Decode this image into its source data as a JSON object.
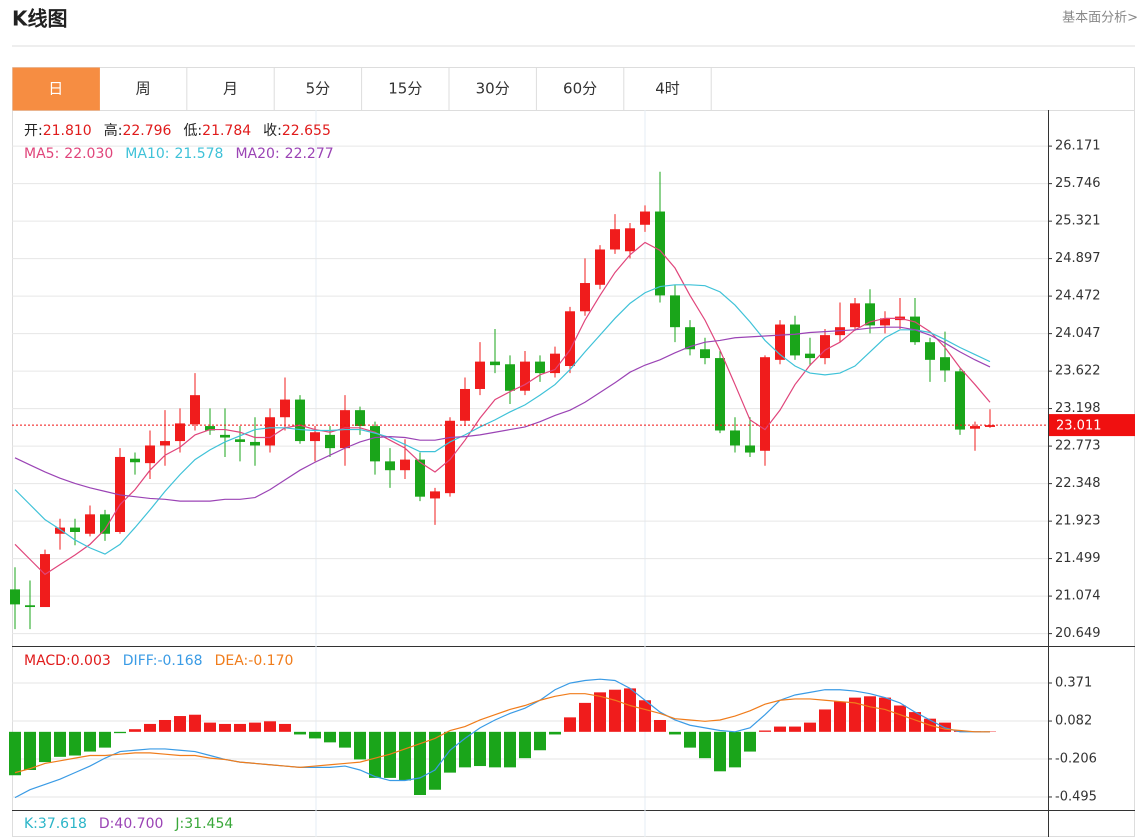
{
  "header": {
    "title": "K线图",
    "link": "基本面分析>"
  },
  "tabs": [
    "日",
    "周",
    "月",
    "5分",
    "15分",
    "30分",
    "60分",
    "4时"
  ],
  "active_tab": 0,
  "chart_data": {
    "type": "candlestick",
    "ohlc_labels": [
      {
        "label": "开:",
        "value": "21.810"
      },
      {
        "label": "高:",
        "value": "22.796"
      },
      {
        "label": "低:",
        "value": "21.784"
      },
      {
        "label": "收:",
        "value": "22.655"
      }
    ],
    "ohlc_label_color": "#e01b1b",
    "open": [
      21.15,
      20.97,
      20.95,
      21.78,
      21.85,
      21.78,
      22.0,
      21.8,
      22.63,
      22.58,
      22.78,
      22.83,
      23.02,
      23.0,
      22.9,
      22.85,
      22.82,
      22.78,
      23.1,
      23.3,
      22.83,
      22.9,
      22.75,
      23.18,
      23.0,
      22.6,
      22.5,
      22.62,
      22.18,
      22.24,
      23.06,
      23.42,
      23.73,
      23.7,
      23.4,
      23.73,
      23.6,
      23.68,
      24.3,
      24.6,
      25.0,
      24.98,
      25.28,
      25.43,
      24.48,
      24.12,
      23.87,
      23.77,
      22.95,
      22.78,
      22.72,
      23.75,
      24.15,
      23.82,
      23.77,
      24.03,
      24.12,
      24.39,
      24.14,
      24.2,
      24.24,
      23.95,
      23.78,
      23.62,
      22.97,
      22.99
    ],
    "high": [
      21.4,
      21.25,
      21.6,
      21.95,
      21.95,
      22.1,
      22.05,
      22.75,
      22.7,
      22.95,
      23.18,
      23.2,
      23.6,
      23.2,
      23.2,
      23.0,
      23.1,
      23.2,
      23.55,
      23.35,
      23.0,
      23.0,
      23.35,
      23.22,
      23.05,
      22.75,
      22.85,
      22.7,
      22.3,
      23.1,
      23.55,
      23.95,
      24.1,
      23.8,
      23.85,
      23.8,
      23.9,
      24.35,
      24.9,
      25.05,
      25.4,
      25.3,
      25.5,
      25.88,
      24.6,
      24.2,
      24.0,
      23.85,
      23.1,
      23.1,
      23.8,
      24.2,
      24.25,
      24.0,
      24.1,
      24.4,
      24.45,
      24.55,
      24.3,
      24.45,
      24.45,
      24.0,
      24.07,
      23.65,
      23.05,
      23.19
    ],
    "low": [
      20.7,
      20.7,
      20.95,
      21.6,
      21.65,
      21.75,
      21.7,
      21.78,
      22.45,
      22.4,
      22.55,
      22.7,
      22.95,
      22.9,
      22.65,
      22.6,
      22.55,
      22.7,
      22.95,
      22.8,
      22.6,
      22.65,
      22.55,
      22.9,
      22.45,
      22.3,
      22.4,
      22.15,
      21.88,
      22.2,
      23.0,
      23.35,
      23.6,
      23.25,
      23.35,
      23.5,
      23.55,
      23.6,
      24.25,
      24.55,
      24.95,
      24.9,
      25.2,
      24.4,
      23.95,
      23.8,
      23.7,
      22.92,
      22.7,
      22.65,
      22.55,
      23.7,
      23.75,
      23.68,
      23.7,
      23.95,
      24.08,
      24.05,
      24.05,
      24.1,
      23.92,
      23.5,
      23.5,
      22.9,
      22.72,
      22.98
    ],
    "close": [
      20.98,
      20.95,
      21.55,
      21.85,
      21.8,
      22.0,
      21.78,
      22.65,
      22.59,
      22.78,
      22.83,
      23.03,
      23.35,
      22.95,
      22.87,
      22.82,
      22.78,
      23.1,
      23.3,
      22.83,
      22.93,
      22.75,
      23.18,
      23.0,
      22.6,
      22.5,
      22.62,
      22.2,
      22.26,
      23.06,
      23.42,
      23.73,
      23.69,
      23.4,
      23.73,
      23.6,
      23.82,
      24.3,
      24.62,
      25.0,
      25.23,
      25.24,
      25.43,
      24.48,
      24.12,
      23.87,
      23.77,
      22.95,
      22.78,
      22.7,
      23.78,
      24.15,
      23.8,
      23.77,
      24.03,
      24.12,
      24.39,
      24.14,
      24.22,
      24.24,
      23.95,
      23.75,
      23.63,
      22.96,
      23.0,
      23.01
    ],
    "up_color": "#f01c1c",
    "down_color": "#1aa51a",
    "ma_labels": [
      {
        "label": "MA5:",
        "value": "22.030"
      },
      {
        "label": "MA10:",
        "value": "21.578"
      },
      {
        "label": "MA20:",
        "value": "22.277"
      }
    ],
    "ma_series": [
      {
        "color": "#e0457b",
        "values": [
          21.66,
          21.49,
          21.32,
          21.43,
          21.54,
          21.66,
          21.83,
          22.11,
          22.28,
          22.5,
          22.67,
          22.76,
          22.9,
          22.96,
          22.96,
          22.93,
          22.87,
          22.87,
          22.98,
          23.01,
          22.96,
          22.93,
          22.98,
          22.98,
          22.93,
          22.84,
          22.75,
          22.59,
          22.48,
          22.62,
          22.84,
          23.09,
          23.3,
          23.39,
          23.47,
          23.58,
          23.64,
          23.86,
          24.2,
          24.48,
          24.74,
          24.94,
          25.08,
          24.99,
          24.79,
          24.48,
          24.2,
          23.86,
          23.47,
          23.07,
          22.96,
          23.18,
          23.47,
          23.69,
          23.86,
          23.95,
          24.09,
          24.18,
          24.22,
          24.22,
          24.18,
          24.07,
          23.89,
          23.66,
          23.47,
          23.27
        ]
      },
      {
        "color": "#3fc2d8",
        "values": [
          22.28,
          22.11,
          21.94,
          21.83,
          21.71,
          21.62,
          21.55,
          21.66,
          21.85,
          22.05,
          22.26,
          22.45,
          22.62,
          22.73,
          22.82,
          22.89,
          22.96,
          22.98,
          22.98,
          22.96,
          22.95,
          22.95,
          22.96,
          22.96,
          22.92,
          22.87,
          22.79,
          22.71,
          22.71,
          22.82,
          22.9,
          22.99,
          23.07,
          23.16,
          23.24,
          23.35,
          23.47,
          23.64,
          23.84,
          24.03,
          24.22,
          24.39,
          24.51,
          24.58,
          24.6,
          24.6,
          24.59,
          24.52,
          24.37,
          24.18,
          23.97,
          23.81,
          23.68,
          23.6,
          23.58,
          23.6,
          23.68,
          23.84,
          24.0,
          24.09,
          24.09,
          24.06,
          23.98,
          23.89,
          23.81,
          23.73
        ]
      },
      {
        "color": "#9b44b5",
        "values": [
          22.64,
          22.56,
          22.48,
          22.41,
          22.35,
          22.3,
          22.26,
          22.22,
          22.2,
          22.18,
          22.17,
          22.15,
          22.15,
          22.15,
          22.17,
          22.17,
          22.19,
          22.28,
          22.39,
          22.5,
          22.59,
          22.67,
          22.75,
          22.82,
          22.87,
          22.88,
          22.87,
          22.84,
          22.84,
          22.87,
          22.88,
          22.9,
          22.93,
          22.96,
          22.99,
          23.05,
          23.12,
          23.18,
          23.27,
          23.38,
          23.49,
          23.61,
          23.69,
          23.75,
          23.83,
          23.9,
          23.95,
          23.97,
          24.0,
          24.01,
          24.02,
          24.03,
          24.04,
          24.06,
          24.07,
          24.08,
          24.09,
          24.11,
          24.12,
          24.12,
          24.09,
          24.03,
          23.94,
          23.84,
          23.75,
          23.67
        ]
      }
    ],
    "ylim": [
      20.52,
      26.58
    ],
    "yticks": [
      26.171,
      25.746,
      25.321,
      24.897,
      24.472,
      24.047,
      23.622,
      23.198,
      22.773,
      22.348,
      21.923,
      21.499,
      21.074,
      20.649
    ],
    "grid": true,
    "last_price": 23.011,
    "last_price_color": "#f01010",
    "macd": {
      "labels": [
        {
          "label": "MACD:",
          "value": "0.003",
          "color": "#e01b1b"
        },
        {
          "label": "DIFF:",
          "value": "-0.168",
          "color": "#3a9be5"
        },
        {
          "label": "DEA:",
          "value": "-0.170",
          "color": "#f07c1b"
        }
      ],
      "values": [
        -0.33,
        -0.29,
        -0.23,
        -0.19,
        -0.18,
        -0.15,
        -0.12,
        -0.01,
        0.02,
        0.06,
        0.09,
        0.12,
        0.13,
        0.07,
        0.06,
        0.06,
        0.07,
        0.08,
        0.06,
        -0.02,
        -0.05,
        -0.08,
        -0.12,
        -0.21,
        -0.35,
        -0.35,
        -0.37,
        -0.48,
        -0.44,
        -0.31,
        -0.27,
        -0.26,
        -0.27,
        -0.27,
        -0.2,
        -0.14,
        -0.02,
        0.11,
        0.22,
        0.3,
        0.32,
        0.33,
        0.24,
        0.09,
        -0.02,
        -0.12,
        -0.2,
        -0.3,
        -0.27,
        -0.15,
        0.01,
        0.04,
        0.04,
        0.07,
        0.17,
        0.23,
        0.26,
        0.27,
        0.26,
        0.2,
        0.15,
        0.1,
        0.07,
        0.01,
        0.004,
        0.003
      ],
      "diff": [
        -0.5,
        -0.44,
        -0.4,
        -0.36,
        -0.31,
        -0.26,
        -0.2,
        -0.15,
        -0.14,
        -0.13,
        -0.13,
        -0.14,
        -0.15,
        -0.18,
        -0.21,
        -0.23,
        -0.24,
        -0.25,
        -0.26,
        -0.27,
        -0.27,
        -0.27,
        -0.26,
        -0.29,
        -0.34,
        -0.37,
        -0.37,
        -0.35,
        -0.29,
        -0.14,
        -0.05,
        0.03,
        0.09,
        0.14,
        0.18,
        0.24,
        0.32,
        0.37,
        0.39,
        0.4,
        0.39,
        0.33,
        0.24,
        0.15,
        0.09,
        0.05,
        0.03,
        0.01,
        0,
        0.03,
        0.13,
        0.24,
        0.28,
        0.3,
        0.32,
        0.32,
        0.31,
        0.29,
        0.26,
        0.22,
        0.15,
        0.09,
        0.03,
        0,
        0,
        0
      ],
      "dea": [
        -0.31,
        -0.28,
        -0.24,
        -0.22,
        -0.2,
        -0.18,
        -0.18,
        -0.17,
        -0.16,
        -0.16,
        -0.17,
        -0.18,
        -0.18,
        -0.2,
        -0.21,
        -0.23,
        -0.24,
        -0.25,
        -0.26,
        -0.27,
        -0.26,
        -0.25,
        -0.24,
        -0.23,
        -0.2,
        -0.17,
        -0.13,
        -0.09,
        -0.05,
        0.01,
        0.04,
        0.09,
        0.13,
        0.17,
        0.2,
        0.24,
        0.27,
        0.29,
        0.29,
        0.27,
        0.24,
        0.2,
        0.17,
        0.14,
        0.1,
        0.09,
        0.08,
        0.09,
        0.12,
        0.16,
        0.21,
        0.24,
        0.25,
        0.25,
        0.24,
        0.23,
        0.22,
        0.19,
        0.17,
        0.13,
        0.09,
        0.05,
        0.02,
        0.01,
        0,
        0
      ],
      "ylim": [
        -0.594,
        0.637
      ],
      "yticks": [
        0.371,
        0.082,
        -0.206,
        -0.495
      ]
    },
    "kdj_labels": [
      {
        "label": "K:",
        "value": "37.618",
        "color": "#2bb5c8"
      },
      {
        "label": "D:",
        "value": "40.700",
        "color": "#9b44b5"
      },
      {
        "label": "J:",
        "value": "31.454",
        "color": "#3aa83a"
      }
    ]
  }
}
